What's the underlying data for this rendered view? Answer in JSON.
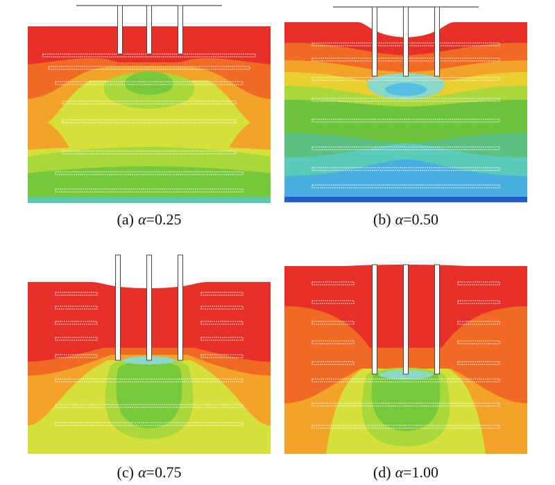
{
  "panels": [
    {
      "label": "(a)",
      "symbol": "α",
      "value": "=0.25"
    },
    {
      "label": "(b)",
      "symbol": "α",
      "value": "=0.50"
    },
    {
      "label": "(c)",
      "symbol": "α",
      "value": "=0.75"
    },
    {
      "label": "(d)",
      "symbol": "α",
      "value": "=1.00"
    }
  ]
}
